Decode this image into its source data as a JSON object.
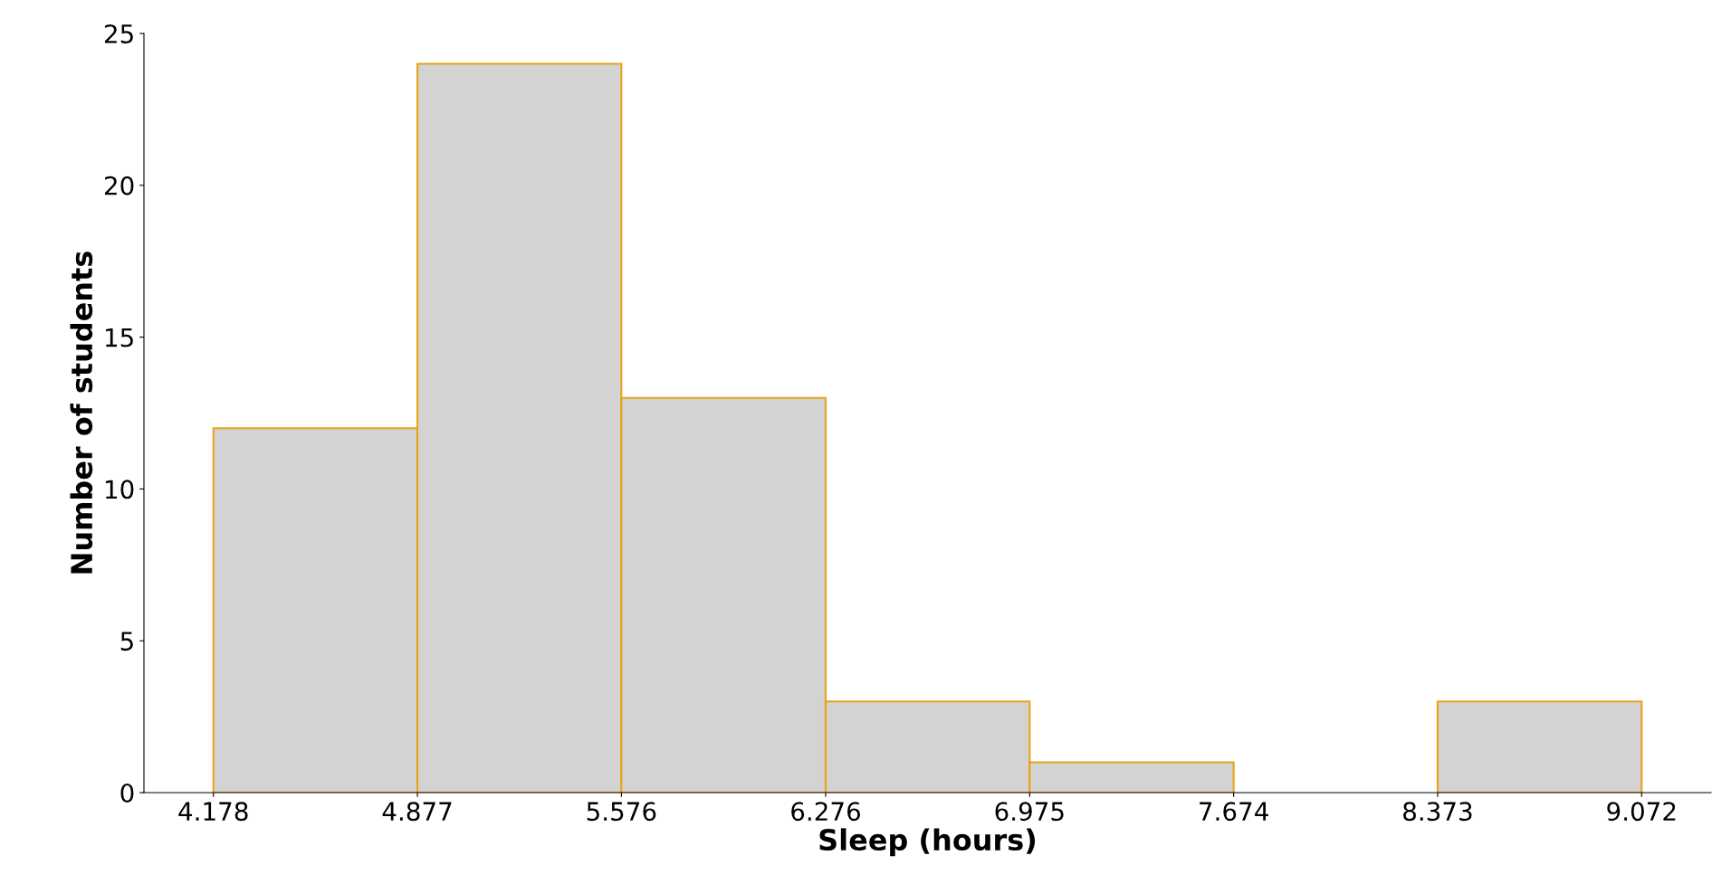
{
  "chart_data": {
    "type": "histogram",
    "xlabel": "Sleep (hours)",
    "ylabel": "Number of students",
    "bins": [
      4.178,
      4.877,
      5.576,
      6.276,
      6.975,
      7.674,
      8.373,
      9.072
    ],
    "values": [
      12,
      24,
      13,
      3,
      1,
      0,
      3
    ],
    "color": "#d3d3d3",
    "xlim": [
      3.94,
      9.31
    ],
    "xticks": [
      4.178,
      4.877,
      5.576,
      6.276,
      6.975,
      7.674,
      8.373,
      9.072
    ],
    "ylim": [
      0,
      25
    ],
    "yticks": [
      0,
      5,
      10,
      15,
      20,
      25
    ],
    "grid": false
  }
}
